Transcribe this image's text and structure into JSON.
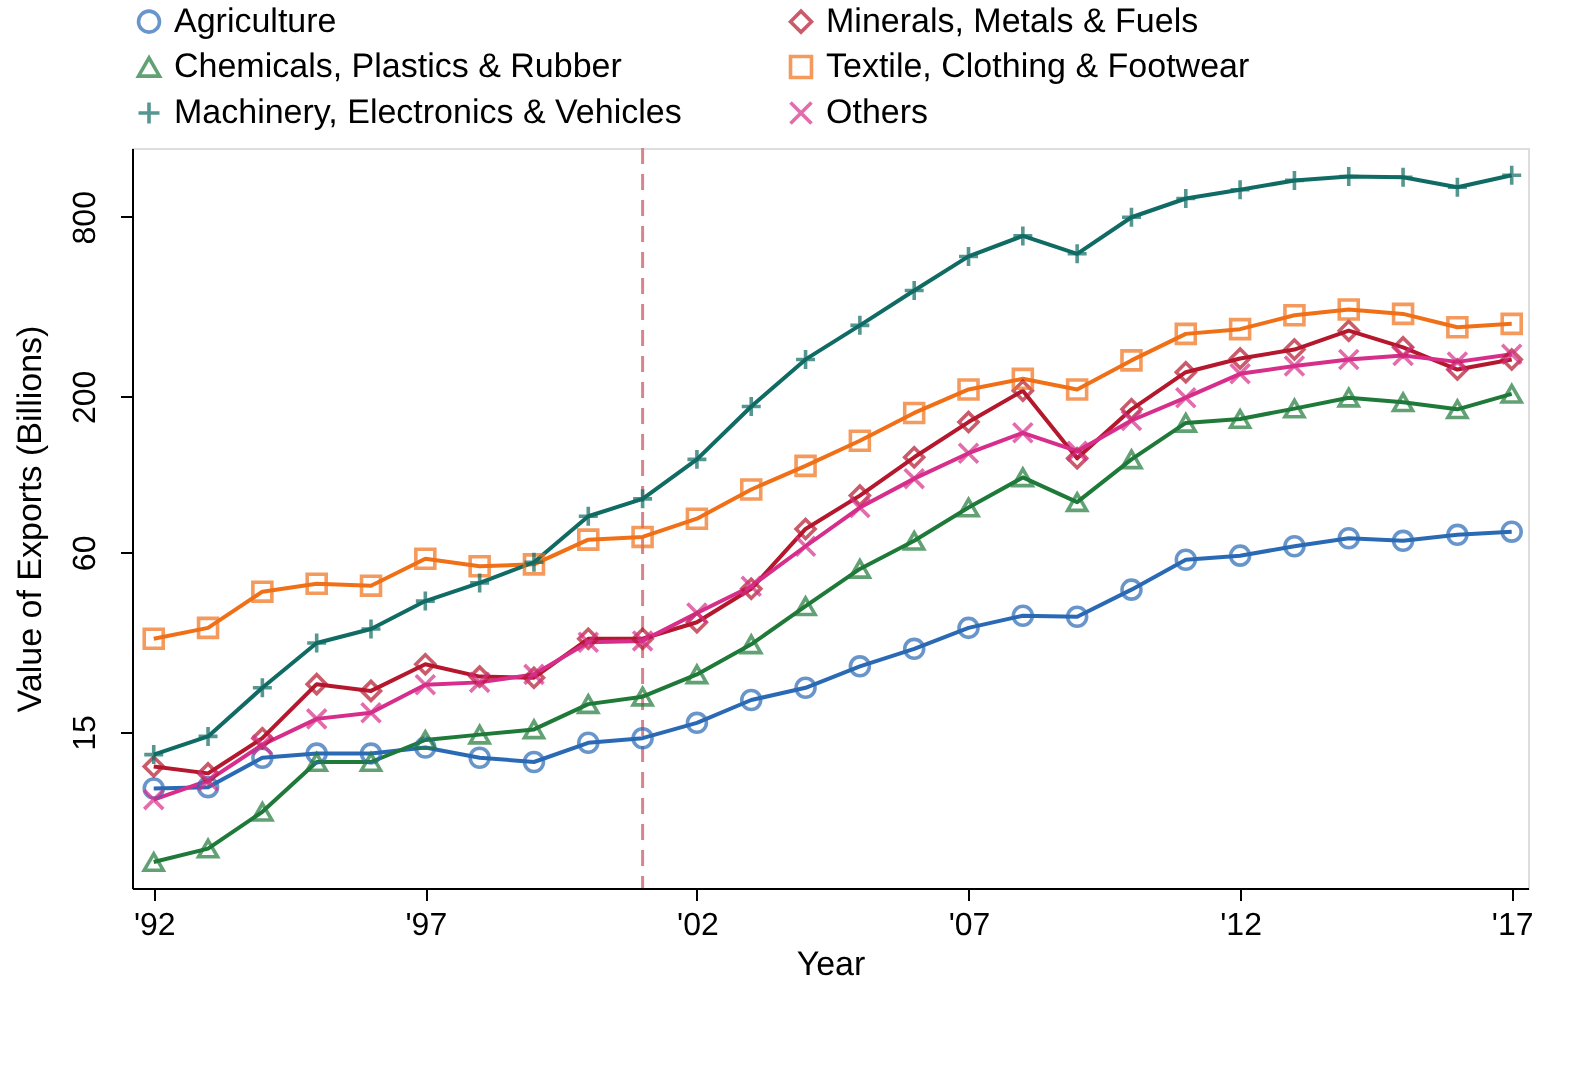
{
  "chart_data": {
    "type": "line",
    "xlabel": "Year",
    "ylabel": "Value of Exports (Billions)",
    "log": "y",
    "grid": false,
    "legend": "top",
    "xlim": [
      1991.6,
      2017.3
    ],
    "ylim": [
      4.5,
      1360
    ],
    "xticks": [
      {
        "value": 1992,
        "label": "'92"
      },
      {
        "value": 1997,
        "label": "'97"
      },
      {
        "value": 2002,
        "label": "'02"
      },
      {
        "value": 2007,
        "label": "'07"
      },
      {
        "value": 2012,
        "label": "'12"
      },
      {
        "value": 2017,
        "label": "'17"
      }
    ],
    "yticks": [
      15,
      60,
      200,
      800
    ],
    "x": [
      1992,
      1993,
      1994,
      1995,
      1996,
      1997,
      1998,
      1999,
      2000,
      2001,
      2002,
      2003,
      2004,
      2005,
      2006,
      2007,
      2008,
      2009,
      2010,
      2011,
      2012,
      2013,
      2014,
      2015,
      2016,
      2017
    ],
    "series": [
      {
        "name": "Agriculture",
        "color": "#2a6ab5",
        "marker": "circle",
        "values": [
          9.7,
          9.8,
          12.3,
          12.7,
          12.7,
          13.3,
          12.3,
          11.9,
          13.8,
          14.3,
          16.1,
          19.2,
          21.1,
          24.9,
          28.5,
          33.5,
          36.8,
          36.5,
          45,
          56.7,
          58.5,
          62.9,
          66.9,
          65.6,
          68.7,
          70.4
        ]
      },
      {
        "name": "Minerals, Metals & Fuels",
        "color": "#b5172d",
        "marker": "diamond",
        "values": [
          11.5,
          10.9,
          14.3,
          21.7,
          20.6,
          25.3,
          23.0,
          22.8,
          30.8,
          30.8,
          35,
          45.3,
          71.9,
          93,
          125,
          164,
          209,
          124,
          181,
          241,
          268,
          287,
          332,
          292,
          246,
          266
        ]
      },
      {
        "name": "Chemicals, Plastics & Rubber",
        "color": "#1f7a3a",
        "marker": "triangle",
        "values": [
          5.5,
          6.1,
          8.1,
          11.9,
          11.9,
          14.1,
          14.7,
          15.3,
          18.6,
          19.7,
          23.4,
          29.5,
          39.6,
          52.8,
          65.6,
          84.8,
          107,
          88.4,
          123,
          163,
          168,
          182,
          198,
          191,
          181,
          204
        ]
      },
      {
        "name": "Textile, Clothing & Footwear",
        "color": "#f07018",
        "marker": "square",
        "values": [
          30.8,
          33.5,
          44.3,
          47.1,
          46.4,
          57.1,
          53.9,
          54.7,
          66.2,
          67.6,
          77.8,
          97.5,
          117,
          142,
          176,
          211,
          229,
          211,
          264,
          324,
          336,
          374,
          391,
          378,
          341,
          350
        ]
      },
      {
        "name": "Machinery, Electronics & Vehicles",
        "color": "#0f6b63",
        "marker": "cross",
        "values": [
          12.6,
          14.5,
          21.1,
          29.8,
          33.2,
          41.2,
          47.4,
          55.6,
          79.3,
          90.7,
          123,
          185,
          266,
          346,
          453,
          589,
          690,
          601,
          797,
          921,
          985,
          1059,
          1092,
          1085,
          1005,
          1102
        ]
      },
      {
        "name": "Others",
        "color": "#d62e8a",
        "marker": "x",
        "values": [
          8.9,
          10.3,
          13.6,
          16.6,
          17.4,
          21.6,
          22.0,
          23.4,
          30.0,
          30.3,
          37.6,
          46.2,
          62.9,
          84.8,
          106,
          129,
          151,
          131,
          166,
          198,
          238,
          253,
          266,
          274,
          261,
          277
        ]
      }
    ],
    "ref_lines": [
      {
        "axis": "x",
        "value": 2001,
        "color": "#d9848c",
        "line_style": "dashed"
      }
    ]
  }
}
